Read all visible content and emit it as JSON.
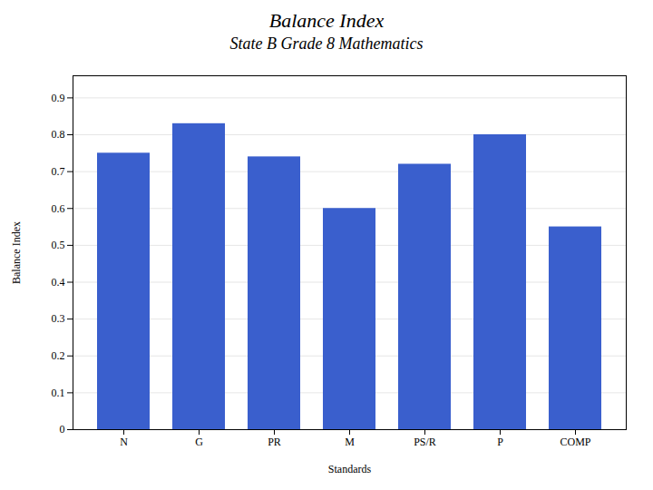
{
  "chart_data": {
    "type": "bar",
    "title": "Balance Index",
    "subtitle": "State B Grade 8 Mathematics",
    "xlabel": "Standards",
    "ylabel": "Balance Index",
    "categories": [
      "N",
      "G",
      "PR",
      "M",
      "PS/R",
      "P",
      "COMP"
    ],
    "values": [
      0.75,
      0.83,
      0.74,
      0.6,
      0.72,
      0.8,
      0.55
    ],
    "color": "#3A5FCD",
    "ylim": [
      0,
      0.96
    ],
    "yticks": [
      0,
      0.1,
      0.2,
      0.3,
      0.4,
      0.5,
      0.6,
      0.7,
      0.8,
      0.9
    ],
    "grid": true
  }
}
